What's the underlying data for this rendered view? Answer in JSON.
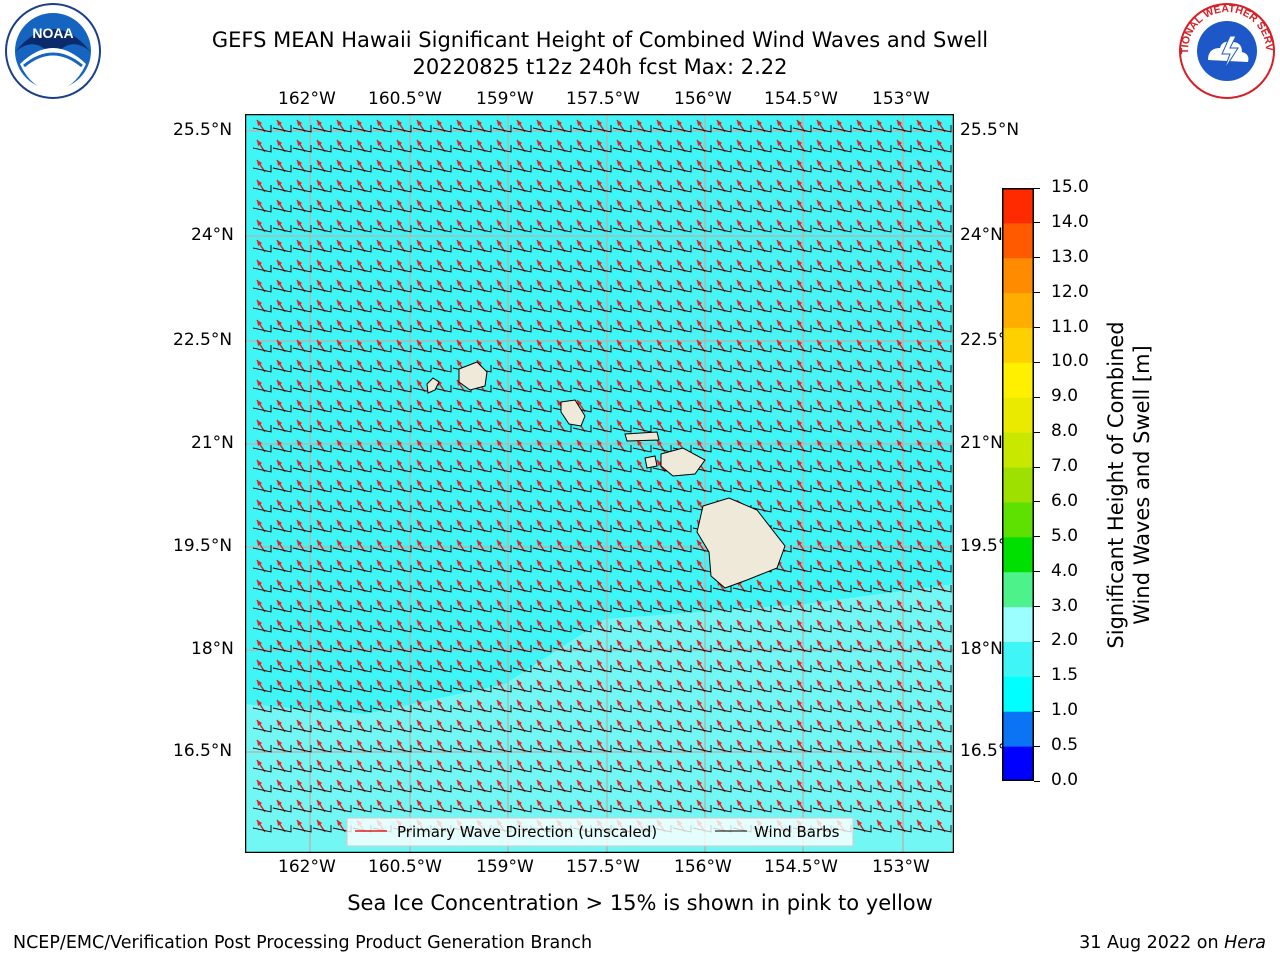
{
  "title": {
    "line1": "GEFS MEAN Hawaii Significant Height of Combined Wind Waves and Swell",
    "line2": "20220825 t12z 240h fcst   Max: 2.22"
  },
  "logos": {
    "left": {
      "icon": "noaa-logo",
      "text": "NOAA"
    },
    "right": {
      "icon": "national-weather-service-logo",
      "text": "NATIONAL WEATHER SERVICE"
    }
  },
  "map": {
    "lon_ticks": [
      "162°W",
      "160.5°W",
      "159°W",
      "157.5°W",
      "156°W",
      "154.5°W",
      "153°W"
    ],
    "lat_ticks": [
      "25.5°N",
      "24°N",
      "22.5°N",
      "21°N",
      "19.5°N",
      "18°N",
      "16.5°N"
    ],
    "ocean_color": "#40f5f5",
    "land_color": "#efe9d9",
    "wave_arrow_color": "#e02020",
    "barb_color": "#000000",
    "legend": {
      "wave": "Primary Wave Direction (unscaled)",
      "barb": "Wind Barbs"
    }
  },
  "colorbar": {
    "label_line1": "Significant Height of Combined",
    "label_line2": "Wind Waves and Swell [m]",
    "ticks": [
      "0.0",
      "0.5",
      "1.0",
      "1.5",
      "2.0",
      "3.0",
      "4.0",
      "5.0",
      "6.0",
      "7.0",
      "8.0",
      "9.0",
      "10.0",
      "11.0",
      "12.0",
      "13.0",
      "14.0",
      "15.0"
    ],
    "colors": [
      "#0000ff",
      "#0a74f4",
      "#00ffff",
      "#40f5f5",
      "#9cffff",
      "#4df28a",
      "#00e000",
      "#5ee000",
      "#9ee000",
      "#c8e800",
      "#eaea00",
      "#fff000",
      "#ffd000",
      "#ffae00",
      "#ff8c00",
      "#ff5a00",
      "#ff2a00",
      "#ff0000"
    ]
  },
  "note": "Sea Ice Concentration > 15% is shown in pink to yellow",
  "footer": {
    "left": "NCEP/EMC/Verification Post Processing Product Generation Branch",
    "right_date": "31 Aug 2022 on ",
    "right_host": "Hera"
  }
}
